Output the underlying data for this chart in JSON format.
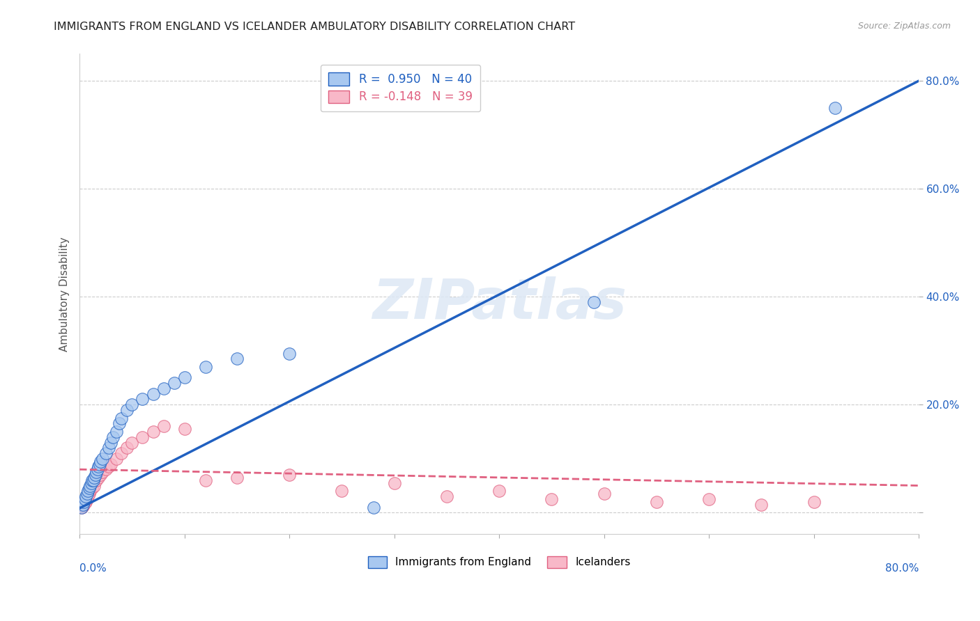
{
  "title": "IMMIGRANTS FROM ENGLAND VS ICELANDER AMBULATORY DISABILITY CORRELATION CHART",
  "source": "Source: ZipAtlas.com",
  "ylabel": "Ambulatory Disability",
  "ytick_labels": [
    "",
    "20.0%",
    "40.0%",
    "60.0%",
    "80.0%"
  ],
  "ytick_values": [
    0,
    0.2,
    0.4,
    0.6,
    0.8
  ],
  "xlim": [
    0,
    0.8
  ],
  "ylim": [
    -0.04,
    0.85
  ],
  "legend1_r": "0.950",
  "legend1_n": "40",
  "legend2_r": "-0.148",
  "legend2_n": "39",
  "blue_color": "#a8c8f0",
  "pink_color": "#f8b8c8",
  "line_blue": "#2060c0",
  "line_pink": "#e06080",
  "watermark": "ZIPatlas",
  "blue_scatter_x": [
    0.002,
    0.003,
    0.004,
    0.005,
    0.006,
    0.007,
    0.008,
    0.009,
    0.01,
    0.011,
    0.012,
    0.013,
    0.014,
    0.015,
    0.016,
    0.017,
    0.018,
    0.019,
    0.02,
    0.022,
    0.025,
    0.028,
    0.03,
    0.032,
    0.035,
    0.038,
    0.04,
    0.045,
    0.05,
    0.06,
    0.07,
    0.08,
    0.09,
    0.1,
    0.12,
    0.15,
    0.2,
    0.28,
    0.49,
    0.72
  ],
  "blue_scatter_y": [
    0.01,
    0.015,
    0.02,
    0.025,
    0.03,
    0.035,
    0.04,
    0.045,
    0.05,
    0.055,
    0.06,
    0.06,
    0.065,
    0.07,
    0.075,
    0.08,
    0.085,
    0.09,
    0.095,
    0.1,
    0.11,
    0.12,
    0.13,
    0.14,
    0.15,
    0.165,
    0.175,
    0.19,
    0.2,
    0.21,
    0.22,
    0.23,
    0.24,
    0.25,
    0.27,
    0.285,
    0.295,
    0.01,
    0.39,
    0.75
  ],
  "pink_scatter_x": [
    0.002,
    0.003,
    0.004,
    0.005,
    0.006,
    0.007,
    0.008,
    0.009,
    0.01,
    0.012,
    0.014,
    0.016,
    0.018,
    0.02,
    0.022,
    0.025,
    0.028,
    0.03,
    0.035,
    0.04,
    0.045,
    0.05,
    0.06,
    0.07,
    0.08,
    0.1,
    0.12,
    0.15,
    0.2,
    0.25,
    0.3,
    0.35,
    0.4,
    0.45,
    0.5,
    0.55,
    0.6,
    0.65,
    0.7
  ],
  "pink_scatter_y": [
    0.01,
    0.012,
    0.015,
    0.018,
    0.02,
    0.025,
    0.03,
    0.035,
    0.04,
    0.045,
    0.05,
    0.06,
    0.065,
    0.07,
    0.075,
    0.08,
    0.085,
    0.09,
    0.1,
    0.11,
    0.12,
    0.13,
    0.14,
    0.15,
    0.16,
    0.155,
    0.06,
    0.065,
    0.07,
    0.04,
    0.055,
    0.03,
    0.04,
    0.025,
    0.035,
    0.02,
    0.025,
    0.015,
    0.02
  ],
  "blue_line_x": [
    0.0,
    0.8
  ],
  "blue_line_y": [
    0.008,
    0.8
  ],
  "pink_line_x": [
    0.0,
    0.8
  ],
  "pink_line_y": [
    0.08,
    0.05
  ]
}
